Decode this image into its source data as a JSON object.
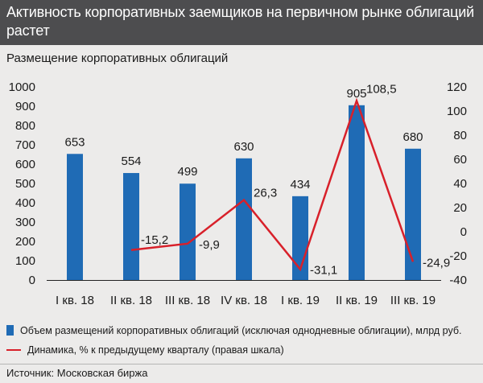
{
  "title": "Активность корпоративных заемщиков на первичном рынке облигаций растет",
  "subtitle": "Размещение корпоративных облигаций",
  "source": "Источник: Московская биржа",
  "colors": {
    "bar": "#1f6bb5",
    "line": "#d8202a",
    "title_bg": "#4d4d4f",
    "background": "#ecebea"
  },
  "legend": {
    "bar_label": "Объем размещений корпоративных облигаций (исключая однодневные облигации), млрд руб.",
    "line_label": "Динамика, % к предыдущему кварталу (правая шкала)"
  },
  "chart_data": {
    "type": "bar",
    "categories": [
      "I кв. 18",
      "II кв. 18",
      "III кв. 18",
      "IV кв. 18",
      "I кв. 19",
      "II кв. 19",
      "III кв. 19"
    ],
    "series": [
      {
        "name": "Объем размещений корпоративных облигаций (исключая однодневные облигации), млрд руб.",
        "type": "bar",
        "axis": "left",
        "values": [
          653,
          554,
          499,
          630,
          434,
          905,
          680
        ],
        "labels": [
          "653",
          "554",
          "499",
          "630",
          "434",
          "905",
          "680"
        ]
      },
      {
        "name": "Динамика, % к предыдущему кварталу (правая шкала)",
        "type": "line",
        "axis": "right",
        "values": [
          null,
          -15.2,
          -9.9,
          26.3,
          -31.1,
          108.5,
          -24.9
        ],
        "labels": [
          "",
          "-15,2",
          "-9,9",
          "26,3",
          "-31,1",
          "108,5",
          "-24,9"
        ]
      }
    ],
    "ylim_left": [
      0,
      1000
    ],
    "yticks_left": [
      "0",
      "100",
      "200",
      "300",
      "400",
      "500",
      "600",
      "700",
      "800",
      "900",
      "1000"
    ],
    "ylim_right": [
      -40,
      120
    ],
    "yticks_right": [
      "-40",
      "-20",
      "0",
      "20",
      "40",
      "60",
      "80",
      "100",
      "120"
    ],
    "grid": false,
    "legend_position": "bottom"
  }
}
